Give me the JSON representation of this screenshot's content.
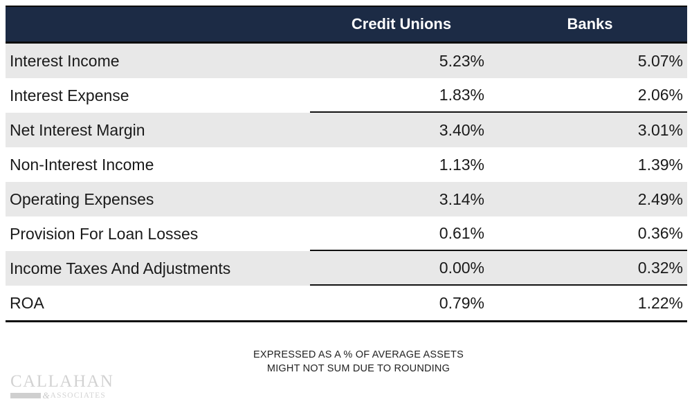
{
  "chart_data": {
    "type": "table",
    "title": "",
    "columns": [
      "",
      "Credit Unions",
      "Banks"
    ],
    "rows": [
      [
        "Interest Income",
        "5.23%",
        "5.07%"
      ],
      [
        "Interest Expense",
        "1.83%",
        "2.06%"
      ],
      [
        "Net Interest Margin",
        "3.40%",
        "3.01%"
      ],
      [
        "Non-Interest Income",
        "1.13%",
        "1.39%"
      ],
      [
        "Operating Expenses",
        "3.14%",
        "2.49%"
      ],
      [
        "Provision For Loan Losses",
        "0.61%",
        "0.36%"
      ],
      [
        "Income Taxes And Adjustments",
        "0.00%",
        "0.32%"
      ],
      [
        "ROA",
        "0.79%",
        "1.22%"
      ]
    ],
    "sum_separator_after_rows": [
      1,
      5,
      6
    ],
    "notes": [
      "EXPRESSED AS A % OF AVERAGE ASSETS",
      "MIGHT NOT SUM DUE TO ROUNDING"
    ],
    "layout_hints": {
      "striped_rows": "odd rows shaded",
      "value_alignment": "right",
      "header_alignment": "center"
    }
  },
  "footnote": {
    "line1": "EXPRESSED AS A % OF AVERAGE ASSETS",
    "line2": "MIGHT NOT SUM DUE TO ROUNDING"
  },
  "logo": {
    "name": "CALLAHAN",
    "ampersand": "&",
    "subtitle": "ASSOCIATES"
  },
  "colors": {
    "header_bg": "#1c2b45",
    "header_text": "#ffffff",
    "stripe_bg": "#e8e8e8",
    "row_bg": "#ffffff",
    "rule_black": "#0d0d0d",
    "body_text": "#1a1a1a",
    "logo_gray": "#d2d2d2"
  }
}
